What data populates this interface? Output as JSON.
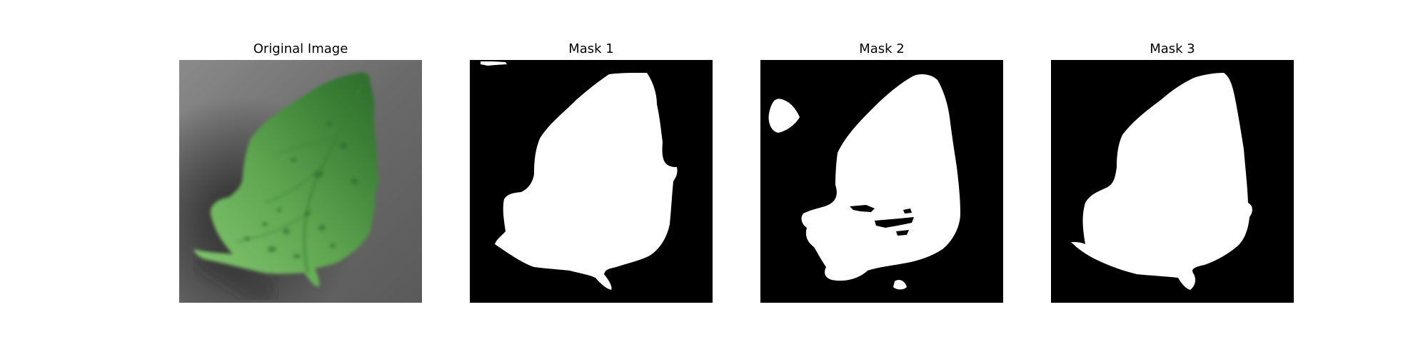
{
  "figure": {
    "panels": [
      {
        "title": "Original Image",
        "kind": "photo",
        "subject": "leaf-photo"
      },
      {
        "title": "Mask 1",
        "kind": "mask",
        "subject": "binary-mask"
      },
      {
        "title": "Mask 2",
        "kind": "mask",
        "subject": "binary-mask"
      },
      {
        "title": "Mask 3",
        "kind": "mask",
        "subject": "binary-mask"
      }
    ]
  },
  "colors": {
    "background": "#ffffff",
    "title_text": "#000000",
    "mask_background": "#000000",
    "mask_foreground": "#ffffff",
    "photo_backdrop": "#6f6f6f",
    "leaf_light": "#7ec86a",
    "leaf_mid": "#4f9e45",
    "leaf_dark": "#2f6f2c"
  }
}
